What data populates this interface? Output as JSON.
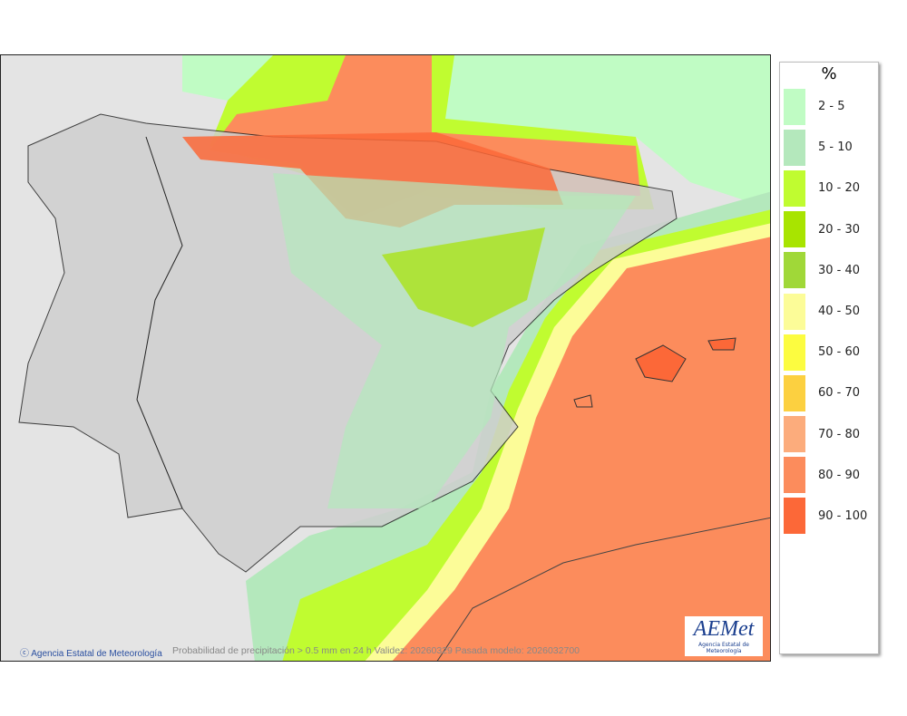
{
  "legend": {
    "unit": "%",
    "items": [
      {
        "label": "2 - 5",
        "color": "#c0fcc4"
      },
      {
        "label": "5 - 10",
        "color": "#b4e8bc"
      },
      {
        "label": "10 - 20",
        "color": "#c0fc30"
      },
      {
        "label": "20 - 30",
        "color": "#a8e400"
      },
      {
        "label": "30 - 40",
        "color": "#a0d838"
      },
      {
        "label": "40 - 50",
        "color": "#fcfc98"
      },
      {
        "label": "50 - 60",
        "color": "#fcfc40"
      },
      {
        "label": "60 - 70",
        "color": "#fcd040"
      },
      {
        "label": "70 - 80",
        "color": "#fcac7c"
      },
      {
        "label": "80 - 90",
        "color": "#fc8c5c"
      },
      {
        "label": "90 - 100",
        "color": "#fc6838"
      }
    ]
  },
  "footer": {
    "credit": "Agencia Estatal de Meteorología",
    "caption": "Probabilidad de precipitación > 0.5 mm en 24 h Validez: 20260329 Pasada modelo: 2026032700"
  },
  "logo": {
    "name": "AEMet",
    "subtitle": "Agencia Estatal de Meteorología"
  }
}
